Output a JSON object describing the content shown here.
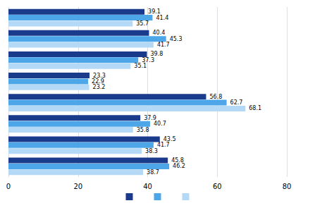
{
  "chart_data": {
    "type": "bar",
    "orientation": "horizontal",
    "categories": [
      null,
      null,
      null,
      null,
      null,
      null,
      null,
      null
    ],
    "series": [
      {
        "color": "#1a3a8c",
        "values": [
          39.1,
          40.4,
          39.8,
          23.3,
          56.8,
          37.9,
          43.5,
          45.8
        ]
      },
      {
        "color": "#4da6e8",
        "values": [
          41.4,
          45.3,
          37.3,
          22.9,
          62.7,
          40.7,
          41.7,
          46.2
        ]
      },
      {
        "color": "#b3d9f7",
        "values": [
          35.7,
          41.7,
          35.1,
          23.2,
          68.1,
          35.8,
          38.3,
          38.7
        ]
      }
    ],
    "xlim": [
      0,
      80
    ],
    "xticks": [
      0,
      20,
      40,
      60,
      80
    ],
    "grid": true,
    "data_labels": true,
    "tick_labels": "x",
    "legend": "bottom"
  }
}
